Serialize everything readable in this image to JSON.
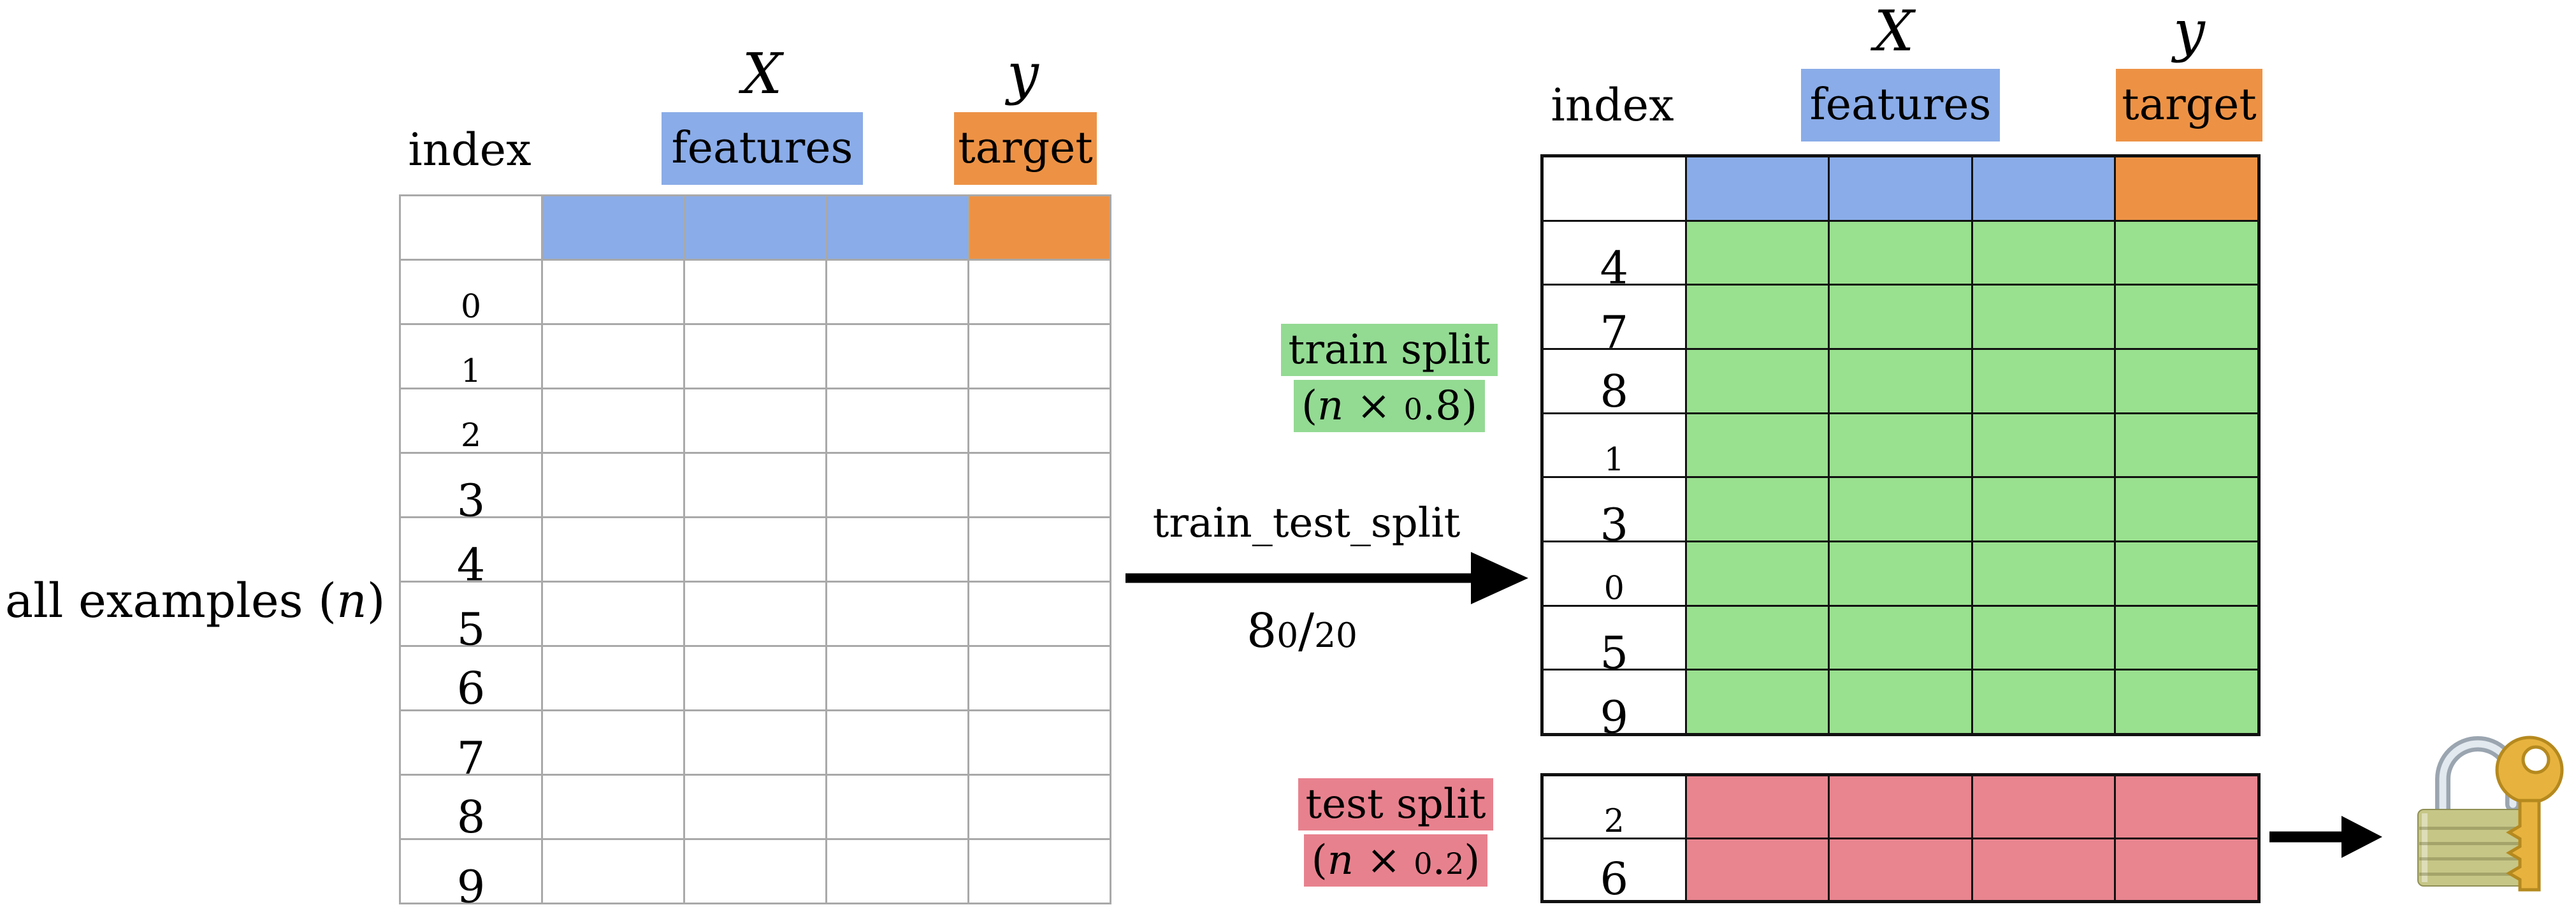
{
  "colors": {
    "background": "#ffffff",
    "ink": "#000000",
    "blue": "#8aace8",
    "orange": "#ed9245",
    "green_cell": "#99e08f",
    "green_highlight": "#93da93",
    "pink_cell": "#e8858f",
    "pink_highlight": "#e8818e",
    "grid_gray": "#a9a9a9",
    "grid_black": "#111111",
    "arrow_black": "#000000",
    "lock_body": "#c6c687",
    "lock_key": "#e7b33e",
    "lock_shackle": "#9aa5b0"
  },
  "icons": {
    "lock": "closed-lock-with-key",
    "split_arrow": "right-arrow",
    "holdout_arrow": "right-arrow"
  },
  "left": {
    "caption_prefix": "all examples (",
    "caption_var": "n",
    "caption_suffix": ")",
    "index_label": "index",
    "x_label": "X",
    "features_label": "features",
    "y_label": "y",
    "target_label": "target",
    "row_labels": [
      "0",
      "1",
      "2",
      "3",
      "4",
      "5",
      "6",
      "7",
      "8",
      "9"
    ]
  },
  "middle": {
    "function_label": "train_test_split",
    "ratio_label": "80/20"
  },
  "train": {
    "index_label": "index",
    "x_label": "X",
    "features_label": "features",
    "y_label": "y",
    "target_label": "target",
    "row_labels": [
      "4",
      "7",
      "8",
      "1",
      "3",
      "0",
      "5",
      "9"
    ],
    "split_label_line1": "train split",
    "split_open": "(",
    "split_var": "n",
    "split_rest": " × 0.8)"
  },
  "test": {
    "row_labels": [
      "2",
      "6"
    ],
    "split_label_line1": "test split",
    "split_open": "(",
    "split_var": "n",
    "split_rest": " × 0.2)"
  }
}
